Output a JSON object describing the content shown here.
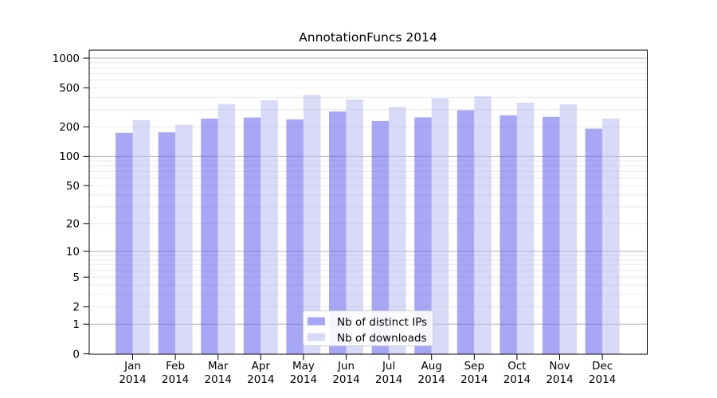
{
  "chart_data": {
    "type": "bar",
    "title": "AnnotationFuncs 2014",
    "categories": [
      "Jan",
      "Feb",
      "Mar",
      "Apr",
      "May",
      "Jun",
      "Jul",
      "Aug",
      "Sep",
      "Oct",
      "Nov",
      "Dec"
    ],
    "year_label": "2014",
    "series": [
      {
        "name": "Nb of distinct IPs",
        "color": "#5f5fee",
        "values": [
          174,
          176,
          243,
          249,
          238,
          287,
          230,
          250,
          296,
          262,
          253,
          192
        ]
      },
      {
        "name": "Nb of downloads",
        "color": "#b9b9f3",
        "values": [
          235,
          210,
          341,
          373,
          422,
          380,
          319,
          392,
          410,
          353,
          340,
          243
        ]
      }
    ],
    "xlabel": "",
    "ylabel": "",
    "yscale": "log1p",
    "ytick_values": [
      0,
      1,
      2,
      5,
      10,
      20,
      50,
      100,
      200,
      500,
      1000
    ],
    "ylim": [
      0,
      1200
    ],
    "grid": true,
    "legend_position": "lower center",
    "bar_opacity": 0.55,
    "colors": {
      "major_grid": "#b2b2b2",
      "minor_grid": "#e8e8e8",
      "axis": "#000000",
      "background": "#ffffff",
      "legend_border": "#cccccc"
    }
  }
}
